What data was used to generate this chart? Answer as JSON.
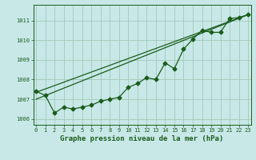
{
  "title": "Graphe pression niveau de la mer (hPa)",
  "background_color": "#c8e8e8",
  "grid_color": "#a0c8b8",
  "line_color": "#1a5c1a",
  "x_values": [
    0,
    1,
    2,
    3,
    4,
    5,
    6,
    7,
    8,
    9,
    10,
    11,
    12,
    13,
    14,
    15,
    16,
    17,
    18,
    19,
    20,
    21,
    22,
    23
  ],
  "series1": [
    1007.4,
    1007.2,
    1006.3,
    1006.6,
    1006.5,
    1006.6,
    1006.7,
    1006.9,
    1007.0,
    1007.1,
    1007.6,
    1007.8,
    1008.1,
    1008.0,
    1008.85,
    1008.55,
    1009.55,
    1010.05,
    1010.5,
    1010.4,
    1010.4,
    1011.1,
    1011.15,
    1011.3
  ],
  "series2_x": [
    0,
    23
  ],
  "series2_y": [
    1007.0,
    1011.3
  ],
  "series3_x": [
    0,
    23
  ],
  "series3_y": [
    1007.35,
    1011.3
  ],
  "ylim": [
    1005.7,
    1011.8
  ],
  "xlim": [
    -0.3,
    23.3
  ],
  "yticks": [
    1006,
    1007,
    1008,
    1009,
    1010,
    1011
  ],
  "xticks": [
    0,
    1,
    2,
    3,
    4,
    5,
    6,
    7,
    8,
    9,
    10,
    11,
    12,
    13,
    14,
    15,
    16,
    17,
    18,
    19,
    20,
    21,
    22,
    23
  ],
  "marker": "D",
  "marker_size": 2.5,
  "linewidth": 0.9,
  "title_fontsize": 6.5,
  "tick_fontsize": 5.0,
  "tick_color": "#1a5c1a",
  "axis_color": "#1a5c1a",
  "label_color": "#1a5c1a"
}
